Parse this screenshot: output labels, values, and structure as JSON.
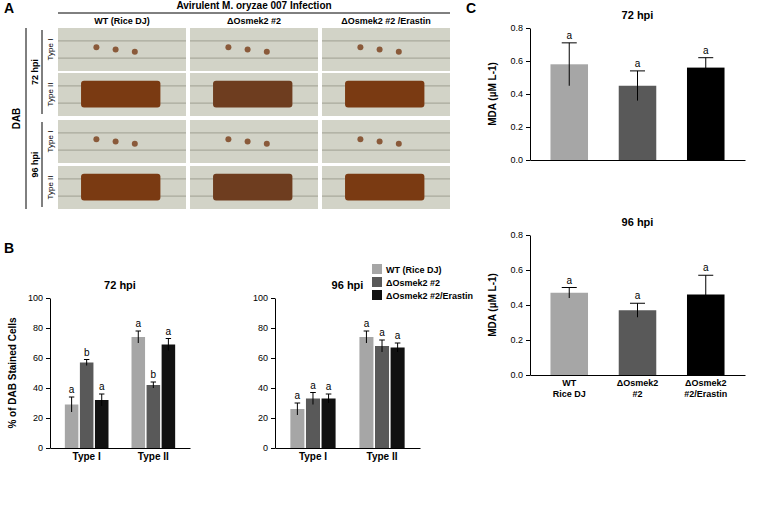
{
  "panel_labels": [
    "A",
    "B",
    "C"
  ],
  "panel_a": {
    "title": "Avirulent M. oryzae 007 Infection",
    "columns": [
      "WT (Rice DJ)",
      "ΔOsmek2 #2",
      "ΔOsmek2 #2 /Erastin"
    ],
    "stain": "DAB",
    "timepoints": [
      "72 hpi",
      "96 hpi"
    ],
    "cell_types": [
      "Type I",
      "Type II"
    ]
  },
  "chart_data": [
    {
      "type": "bar",
      "title": "72 hpi",
      "y_label": "% of DAB Stained Cells",
      "categories": [
        "Type I",
        "Type II"
      ],
      "series": [
        {
          "name": "WT (Rice DJ)",
          "color": "#a6a6a6",
          "values": [
            29,
            74
          ],
          "errors": [
            5,
            4
          ],
          "letters": [
            "a",
            "a"
          ]
        },
        {
          "name": "ΔOsmek2 #2",
          "color": "#595959",
          "values": [
            57,
            42
          ],
          "errors": [
            2,
            2
          ],
          "letters": [
            "b",
            "b"
          ]
        },
        {
          "name": "ΔOsmek2 #2/Erastin",
          "color": "#111111",
          "values": [
            32,
            69
          ],
          "errors": [
            4,
            4
          ],
          "letters": [
            "a",
            "a"
          ]
        }
      ],
      "ylim": [
        0,
        100
      ],
      "yticks": [
        0,
        20,
        40,
        60,
        80,
        100
      ]
    },
    {
      "type": "bar",
      "title": "96 hpi",
      "categories": [
        "Type I",
        "Type II"
      ],
      "series": [
        {
          "name": "WT (Rice DJ)",
          "color": "#a6a6a6",
          "values": [
            26,
            74
          ],
          "errors": [
            4,
            4
          ],
          "letters": [
            "a",
            "a"
          ]
        },
        {
          "name": "ΔOsmek2 #2",
          "color": "#595959",
          "values": [
            33,
            68
          ],
          "errors": [
            4,
            4
          ],
          "letters": [
            "a",
            "a"
          ]
        },
        {
          "name": "ΔOsmek2 #2/Erastin",
          "color": "#111111",
          "values": [
            33,
            67
          ],
          "errors": [
            3,
            3
          ],
          "letters": [
            "a",
            "a"
          ]
        }
      ],
      "ylim": [
        0,
        100
      ],
      "yticks": [
        0,
        20,
        40,
        60,
        80,
        100
      ],
      "legend": "top-right"
    },
    {
      "type": "bar",
      "title": "72 hpi",
      "y_label": "MDA (µM L-1)",
      "categories": [
        null,
        null,
        null
      ],
      "values": [
        0.58,
        0.45,
        0.56
      ],
      "errors": [
        0.13,
        0.09,
        0.06
      ],
      "letters": [
        "a",
        "a",
        "a"
      ],
      "colors": [
        "#a6a6a6",
        "#595959",
        "#000000"
      ],
      "ylim": [
        0,
        0.8
      ],
      "yticks": [
        {
          "value": 0,
          "label": "0.0"
        },
        0.2,
        0.4,
        0.6,
        0.8
      ]
    },
    {
      "type": "bar",
      "title": "96 hpi",
      "y_label": "MDA (µM L-1)",
      "categories": [
        "WT Rice DJ",
        "ΔOsmek2 #2",
        "ΔOsmek2 #2/Erastin"
      ],
      "values": [
        0.47,
        0.37,
        0.46
      ],
      "errors": [
        0.03,
        0.04,
        0.11
      ],
      "letters": [
        "a",
        "a",
        "a"
      ],
      "colors": [
        "#a6a6a6",
        "#595959",
        "#000000"
      ],
      "ylim": [
        0,
        0.8
      ],
      "yticks": [
        {
          "value": 0,
          "label": "0.0"
        },
        0.2,
        0.4,
        0.6,
        0.8
      ]
    }
  ]
}
